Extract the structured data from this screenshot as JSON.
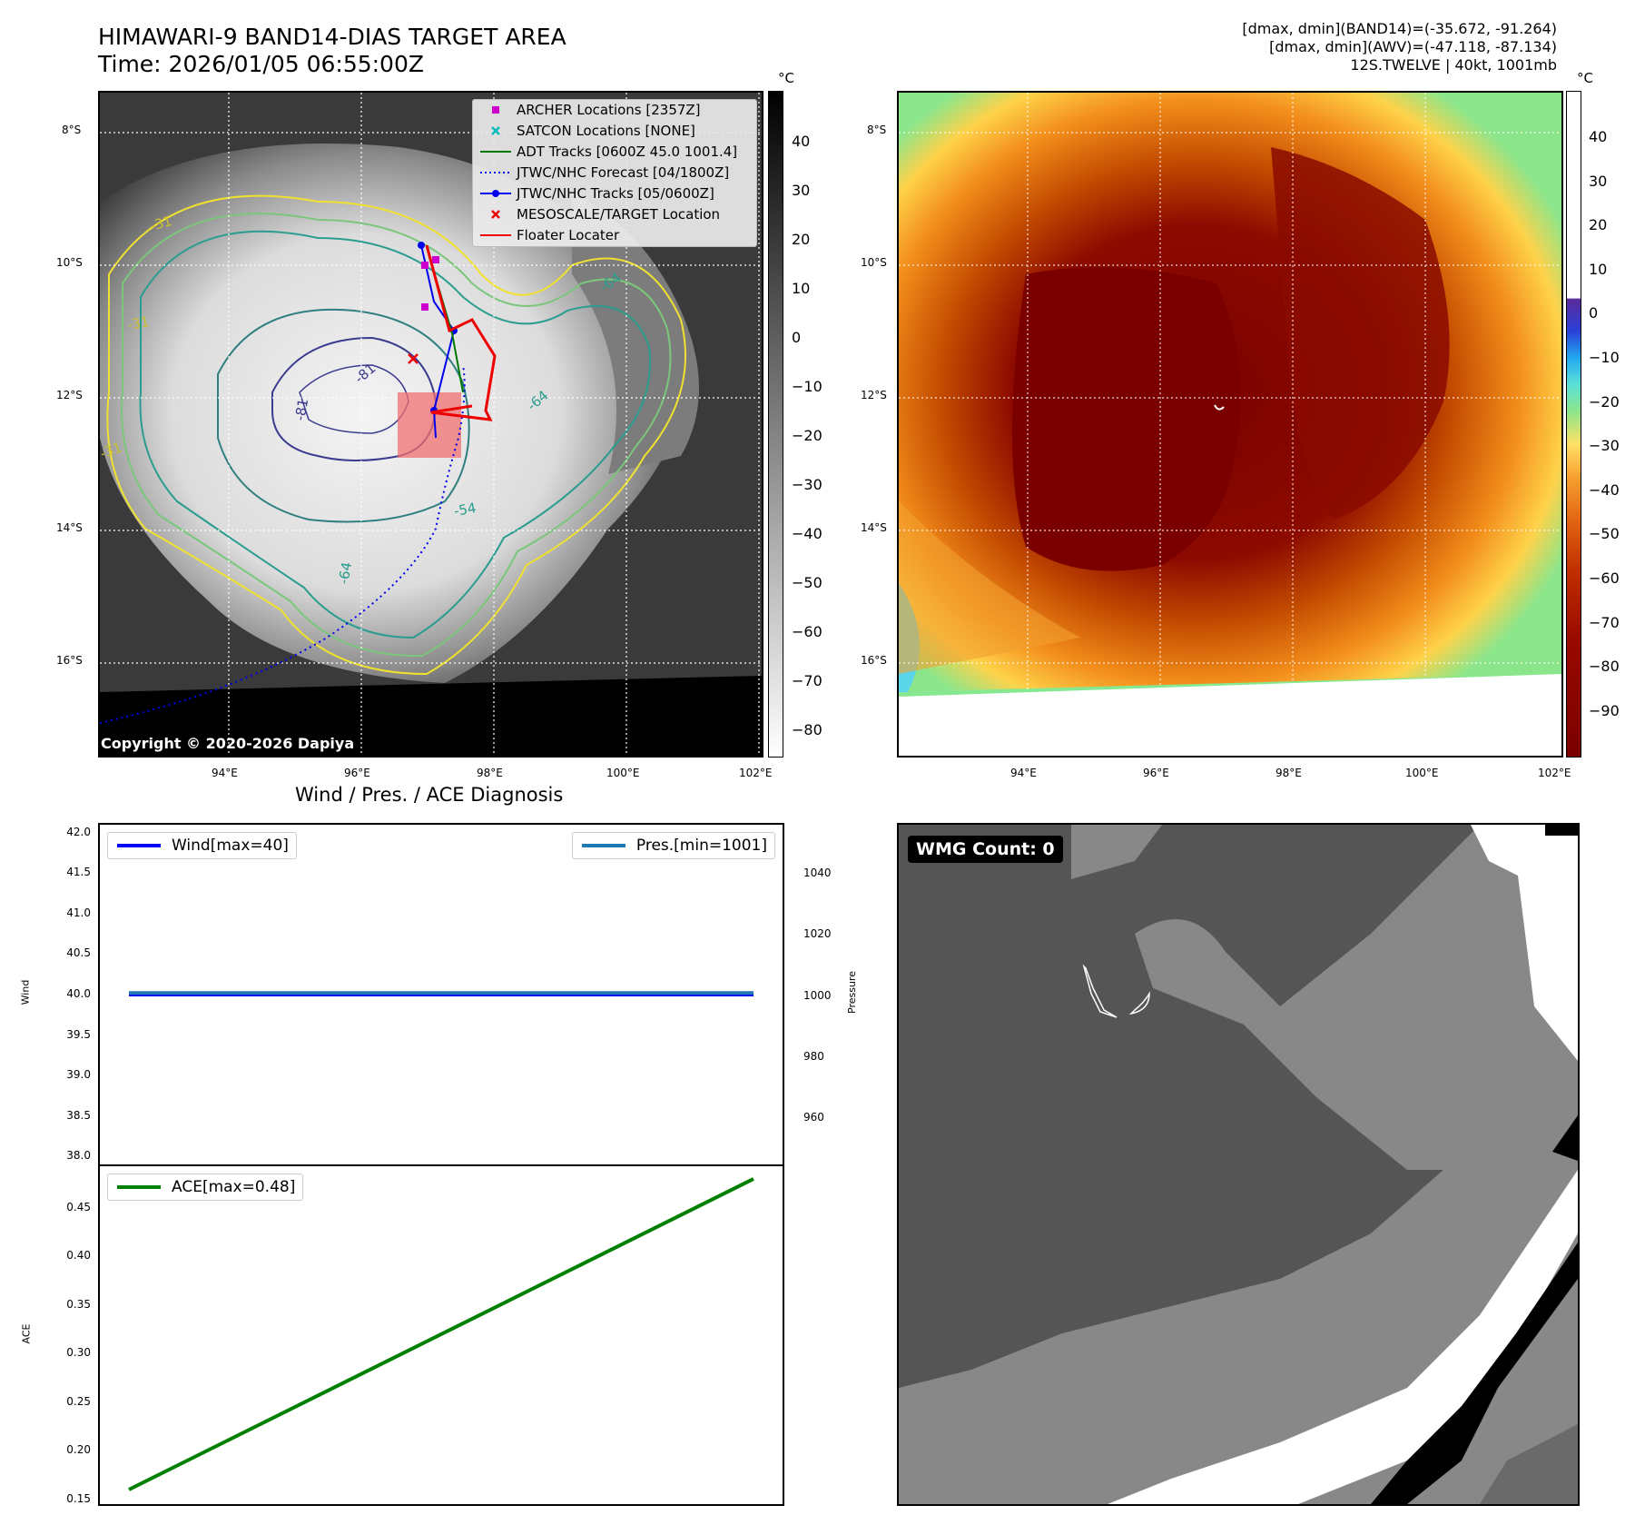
{
  "header": {
    "title_line1": "HIMAWARI-9 BAND14-DIAS TARGET AREA",
    "title_line2": "Time: 2026/01/05 06:55:00Z",
    "info_line1": "[dmax, dmin](BAND14)=(-35.672, -91.264)",
    "info_line2": "[dmax, dmin](AWV)=(-47.118, -87.134)",
    "info_line3": "12S.TWELVE | 40kt, 1001mb"
  },
  "map": {
    "lon_ticks": [
      "94°E",
      "96°E",
      "98°E",
      "100°E",
      "102°E"
    ],
    "lat_ticks": [
      "8°S",
      "10°S",
      "12°S",
      "14°S",
      "16°S"
    ],
    "contour_labels": [
      "-31",
      "-31",
      "-31",
      "-81",
      "-81",
      "-64",
      "-64",
      "-64",
      "-54"
    ],
    "copyright": "Copyright © 2020-2026 Dapiya"
  },
  "legend": {
    "items": [
      {
        "label": "ARCHER Locations [2357Z]",
        "color": "#cc00cc",
        "symbol": "square"
      },
      {
        "label": "SATCON Locations [NONE]",
        "color": "#00bbbb",
        "symbol": "x"
      },
      {
        "label": "ADT Tracks [0600Z 45.0 1001.4]",
        "color": "#007700",
        "symbol": "line"
      },
      {
        "label": "JTWC/NHC Forecast [04/1800Z]",
        "color": "#0000ee",
        "symbol": "dotted"
      },
      {
        "label": "JTWC/NHC Tracks [05/0600Z]",
        "color": "#0000ee",
        "symbol": "line-dot"
      },
      {
        "label": "MESOSCALE/TARGET Location",
        "color": "#ee0000",
        "symbol": "x"
      },
      {
        "label": "Floater Locater",
        "color": "#ee0000",
        "symbol": "line"
      }
    ]
  },
  "colorbar_gray": {
    "unit": "°C",
    "ticks": [
      "40",
      "30",
      "20",
      "10",
      "0",
      "−10",
      "−20",
      "−30",
      "−40",
      "−50",
      "−60",
      "−70",
      "−80"
    ]
  },
  "colorbar_color": {
    "unit": "°C",
    "ticks": [
      "40",
      "30",
      "20",
      "10",
      "0",
      "−10",
      "−20",
      "−30",
      "−40",
      "−50",
      "−60",
      "−70",
      "−80",
      "−90"
    ]
  },
  "diagnosis": {
    "title": "Wind / Pres. / ACE Diagnosis",
    "wind_ylabel": "Wind",
    "pres_ylabel": "Pressure",
    "ace_ylabel": "ACE",
    "wind_legend": "Wind[max=40]",
    "pres_legend": "Pres.[min=1001]",
    "ace_legend": "ACE[max=0.48]"
  },
  "wmg": {
    "label": "WMG Count: 0"
  },
  "colors": {
    "wind": "#0000ff",
    "pressure": "#1f77b4",
    "ace": "#008000"
  },
  "chart_data": [
    {
      "type": "line",
      "title": "Wind / Pres. / ACE Diagnosis",
      "ylabel": "Wind",
      "ylim": [
        37.9,
        42.1
      ],
      "yticks": [
        "42.0",
        "41.5",
        "41.0",
        "40.5",
        "40.0",
        "39.5",
        "39.0",
        "38.5",
        "38.0"
      ],
      "series": [
        {
          "name": "Wind[max=40]",
          "x": [
            0,
            1
          ],
          "values": [
            40,
            40
          ]
        }
      ]
    },
    {
      "type": "line",
      "ylabel": "Pressure",
      "ylim": [
        945,
        1056
      ],
      "yticks": [
        "1040",
        "1020",
        "1000",
        "980",
        "960"
      ],
      "series": [
        {
          "name": "Pres.[min=1001]",
          "x": [
            0,
            1
          ],
          "values": [
            1001,
            1001
          ]
        }
      ]
    },
    {
      "type": "line",
      "ylabel": "ACE",
      "ylim": [
        0.145,
        0.493
      ],
      "yticks": [
        "0.45",
        "0.40",
        "0.35",
        "0.30",
        "0.25",
        "0.20",
        "0.15"
      ],
      "series": [
        {
          "name": "ACE[max=0.48]",
          "x": [
            0,
            1
          ],
          "values": [
            0.16,
            0.48
          ]
        }
      ]
    }
  ]
}
